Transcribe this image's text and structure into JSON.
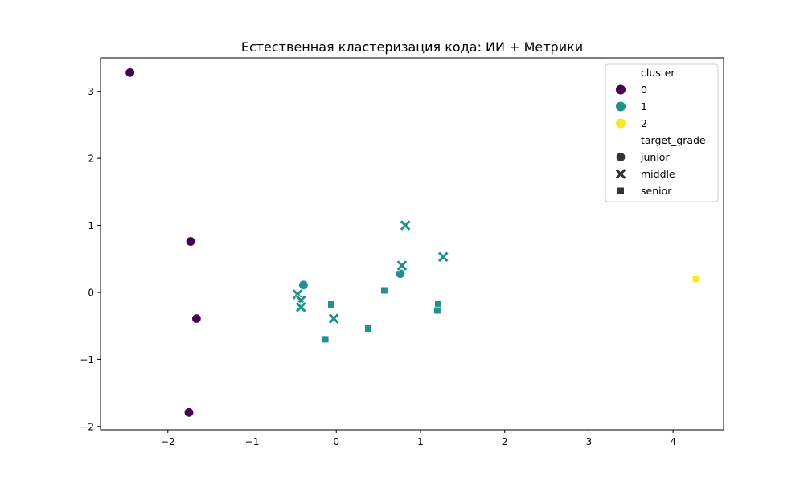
{
  "chart_data": {
    "type": "scatter",
    "title": "Естественная кластеризация кода: ИИ + Метрики",
    "xlabel": "",
    "ylabel": "",
    "xlim": [
      -2.8,
      4.6
    ],
    "ylim": [
      -2.05,
      3.5
    ],
    "xticks": [
      -2,
      -1,
      0,
      1,
      2,
      3,
      4
    ],
    "yticks": [
      -2,
      -1,
      0,
      1,
      2,
      3
    ],
    "grid": false,
    "legend_position": "top-right",
    "legend": {
      "hue_title": "cluster",
      "hue_entries": [
        {
          "label": "0",
          "color": "#440154"
        },
        {
          "label": "1",
          "color": "#21918c"
        },
        {
          "label": "2",
          "color": "#fde725"
        }
      ],
      "style_title": "target_grade",
      "style_entries": [
        {
          "label": "junior",
          "marker": "circle"
        },
        {
          "label": "middle",
          "marker": "x"
        },
        {
          "label": "senior",
          "marker": "square"
        }
      ]
    },
    "points": [
      {
        "x": -2.45,
        "y": 3.28,
        "cluster": "0",
        "grade": "junior"
      },
      {
        "x": -1.73,
        "y": 0.76,
        "cluster": "0",
        "grade": "junior"
      },
      {
        "x": -1.66,
        "y": -0.39,
        "cluster": "0",
        "grade": "junior"
      },
      {
        "x": -1.75,
        "y": -1.79,
        "cluster": "0",
        "grade": "junior"
      },
      {
        "x": -0.39,
        "y": 0.11,
        "cluster": "1",
        "grade": "junior"
      },
      {
        "x": 0.76,
        "y": 0.28,
        "cluster": "1",
        "grade": "junior"
      },
      {
        "x": 0.82,
        "y": 1.0,
        "cluster": "1",
        "grade": "middle"
      },
      {
        "x": 0.78,
        "y": 0.4,
        "cluster": "1",
        "grade": "middle"
      },
      {
        "x": 1.27,
        "y": 0.53,
        "cluster": "1",
        "grade": "middle"
      },
      {
        "x": -0.46,
        "y": -0.03,
        "cluster": "1",
        "grade": "middle"
      },
      {
        "x": -0.42,
        "y": -0.12,
        "cluster": "1",
        "grade": "middle"
      },
      {
        "x": -0.42,
        "y": -0.22,
        "cluster": "1",
        "grade": "middle"
      },
      {
        "x": -0.03,
        "y": -0.39,
        "cluster": "1",
        "grade": "middle"
      },
      {
        "x": -0.06,
        "y": -0.18,
        "cluster": "1",
        "grade": "senior"
      },
      {
        "x": 0.57,
        "y": 0.03,
        "cluster": "1",
        "grade": "senior"
      },
      {
        "x": 1.21,
        "y": -0.18,
        "cluster": "1",
        "grade": "senior"
      },
      {
        "x": 1.2,
        "y": -0.27,
        "cluster": "1",
        "grade": "senior"
      },
      {
        "x": 0.38,
        "y": -0.54,
        "cluster": "1",
        "grade": "senior"
      },
      {
        "x": -0.13,
        "y": -0.7,
        "cluster": "1",
        "grade": "senior"
      },
      {
        "x": 4.27,
        "y": 0.2,
        "cluster": "2",
        "grade": "senior"
      }
    ]
  }
}
